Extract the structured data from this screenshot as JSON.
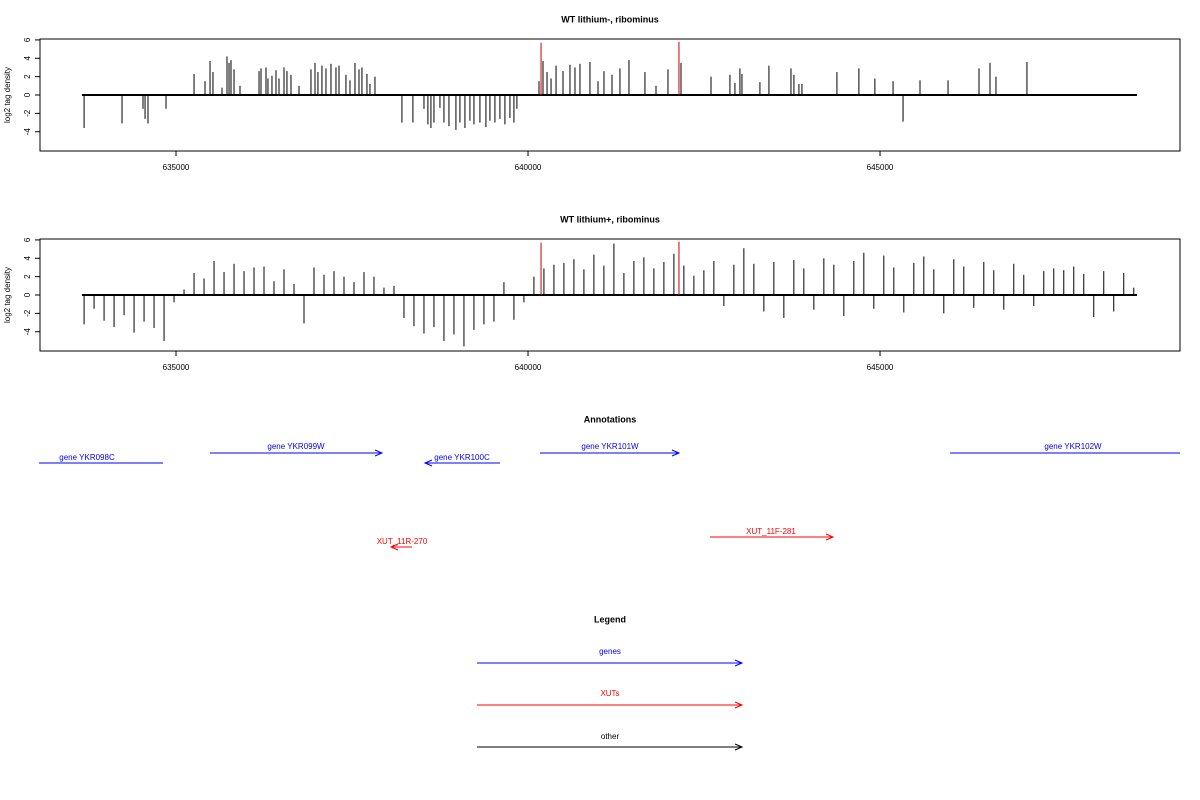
{
  "chart_data": [
    {
      "type": "spike",
      "title": "WT lithium-, ribominus",
      "ylabel": "log2 tag density",
      "xlim": [
        633068,
        649261
      ],
      "ylim": [
        -6.1,
        6.1
      ],
      "xticks": [
        635000,
        640000,
        645000
      ],
      "yticks": [
        -4,
        -2,
        0,
        2,
        4,
        6
      ],
      "series": [
        {
          "color": "#000000",
          "x": [
            633694,
            634233,
            634531,
            634560,
            634602,
            634858,
            635256,
            635412,
            635483,
            635525,
            635653,
            635724,
            635753,
            635781,
            635824,
            635909,
            636179,
            636207,
            636278,
            636306,
            636363,
            636420,
            636463,
            636534,
            636576,
            636633,
            636747,
            636917,
            636974,
            637016,
            637073,
            637130,
            637201,
            637272,
            637315,
            637414,
            637471,
            637542,
            637599,
            637641,
            637712,
            637755,
            637826,
            638209,
            638365,
            638522,
            638578,
            638621,
            638664,
            638749,
            638806,
            638877,
            638976,
            639033,
            639104,
            639175,
            639232,
            639317,
            639402,
            639459,
            639530,
            639601,
            639672,
            639743,
            639800,
            639842,
            640156,
            640213,
            640270,
            640327,
            640398,
            640497,
            640596,
            640667,
            640738,
            640880,
            640994,
            641079,
            641193,
            641306,
            641434,
            641661,
            641818,
            641988,
            642173,
            642599,
            642868,
            642939,
            643010,
            643039,
            643294,
            643422,
            643735,
            643777,
            643848,
            643891,
            644388,
            644700,
            644927,
            645185,
            645327,
            645568,
            645966,
            646406,
            646562,
            646647,
            647087
          ],
          "values": [
            -3.6,
            -3.1,
            -1.5,
            -2.6,
            -3.1,
            -1.5,
            2.3,
            1.5,
            3.7,
            2.5,
            0.8,
            4.2,
            3.5,
            3.8,
            2.8,
            1.0,
            2.6,
            2.9,
            3.0,
            1.8,
            2.1,
            2.7,
            1.8,
            3.0,
            2.6,
            2.2,
            1.0,
            2.8,
            3.5,
            2.5,
            3.2,
            2.9,
            3.4,
            3.0,
            3.2,
            2.2,
            1.6,
            3.5,
            2.8,
            3.0,
            2.3,
            1.2,
            2.0,
            -3.0,
            -3.0,
            -1.5,
            -3.2,
            -3.6,
            -3.0,
            -1.4,
            -3.0,
            -3.4,
            -3.8,
            -3.0,
            -3.6,
            -2.8,
            -3.2,
            -3.0,
            -3.5,
            -2.8,
            -3.0,
            -2.6,
            -3.2,
            -2.5,
            -3.0,
            -1.5,
            1.5,
            3.7,
            2.5,
            1.8,
            3.2,
            2.6,
            3.3,
            3.0,
            3.4,
            3.6,
            1.5,
            2.6,
            2.2,
            2.9,
            3.8,
            2.5,
            1.0,
            2.8,
            3.5,
            2.0,
            2.2,
            1.3,
            2.9,
            2.3,
            1.4,
            3.2,
            2.9,
            2.2,
            1.2,
            1.2,
            2.5,
            2.9,
            1.8,
            1.5,
            -2.9,
            1.6,
            1.6,
            2.9,
            3.5,
            2.0,
            3.6
          ]
        },
        {
          "color": "#cc0000",
          "x": [
            640185,
            642144
          ],
          "values": [
            5.7,
            5.8
          ]
        }
      ]
    },
    {
      "type": "spike",
      "title": "WT lithium+, ribominus",
      "ylabel": "log2 tag density",
      "xlim": [
        633068,
        649261
      ],
      "ylim": [
        -6.1,
        6.1
      ],
      "xticks": [
        635000,
        640000,
        645000
      ],
      "yticks": [
        -4,
        -2,
        0,
        2,
        4,
        6
      ],
      "series": [
        {
          "color": "#000000",
          "x": [
            633694,
            633836,
            633978,
            634120,
            634262,
            634404,
            634546,
            634688,
            634830,
            634972,
            635114,
            635256,
            635398,
            635540,
            635682,
            635824,
            635966,
            636108,
            636250,
            636392,
            636534,
            636676,
            636818,
            636960,
            637102,
            637244,
            637386,
            637528,
            637670,
            637812,
            637954,
            638096,
            638238,
            638380,
            638522,
            638664,
            638806,
            638948,
            639090,
            639232,
            639374,
            639516,
            639658,
            639800,
            639942,
            640084,
            640226,
            640368,
            640510,
            640652,
            640794,
            640936,
            641078,
            641220,
            641362,
            641504,
            641646,
            641788,
            641930,
            642072,
            642214,
            642356,
            642498,
            642640,
            642782,
            642924,
            643066,
            643208,
            643350,
            643492,
            643634,
            643776,
            643918,
            644060,
            644202,
            644344,
            644486,
            644628,
            644770,
            644912,
            645054,
            645196,
            645338,
            645480,
            645622,
            645764,
            645906,
            646048,
            646190,
            646332,
            646474,
            646616,
            646758,
            646900,
            647042,
            647184,
            647326,
            647468,
            647610,
            647752,
            647894,
            648036,
            648178,
            648320,
            648462,
            648604
          ],
          "values": [
            -3.2,
            -1.5,
            -2.8,
            -3.5,
            -2.2,
            -4.1,
            -2.9,
            -3.6,
            -5.0,
            -0.8,
            0.6,
            2.4,
            1.8,
            3.7,
            2.5,
            3.4,
            2.6,
            3.0,
            3.1,
            1.5,
            2.8,
            1.2,
            -3.1,
            3.0,
            2.2,
            2.6,
            2.0,
            1.4,
            2.5,
            2.0,
            0.8,
            1.0,
            -2.5,
            -3.4,
            -4.2,
            -3.5,
            -5.0,
            -4.3,
            -5.6,
            -3.8,
            -3.2,
            -2.9,
            1.4,
            -2.7,
            -0.8,
            2.0,
            2.9,
            3.3,
            3.5,
            3.9,
            2.8,
            4.4,
            3.2,
            5.6,
            2.4,
            3.7,
            4.1,
            2.9,
            3.6,
            4.5,
            3.2,
            2.1,
            2.7,
            3.7,
            -1.2,
            3.3,
            5.1,
            3.4,
            -1.8,
            3.6,
            -2.5,
            3.8,
            2.9,
            -1.6,
            4.0,
            3.3,
            -2.3,
            3.7,
            4.6,
            -1.5,
            4.3,
            3.0,
            -1.9,
            3.5,
            4.2,
            2.8,
            -2.0,
            3.9,
            3.1,
            -1.4,
            3.6,
            2.7,
            -1.6,
            3.4,
            2.2,
            -1.2,
            2.6,
            2.9,
            2.7,
            3.1,
            2.3,
            -2.4,
            2.6,
            -1.8,
            2.4,
            0.8
          ]
        },
        {
          "color": "#cc0000",
          "x": [
            640185,
            642144
          ],
          "values": [
            5.7,
            5.8
          ]
        }
      ]
    }
  ],
  "annotations": {
    "title": "Annotations",
    "features": [
      "gene YKR098C",
      "gene YKR099W",
      "gene YKR100C",
      "gene YKR101W",
      "gene YKR102W",
      "XUT_11R-270",
      "XUT_11F-281"
    ]
  },
  "legend": {
    "title": "Legend",
    "entries": [
      "genes",
      "XUTs",
      "other"
    ]
  }
}
